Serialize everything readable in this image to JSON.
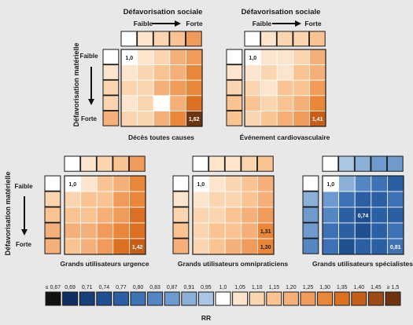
{
  "axis_labels": {
    "col_title": "Défavorisation sociale",
    "col_low": "Faible",
    "col_high": "Forte",
    "row_title": "Défavorisation matérielle",
    "row_low": "Faible",
    "row_high": "Forte"
  },
  "legend": {
    "title": "RR",
    "labels": [
      "≤ 0,67",
      "0,69",
      "0,71",
      "0,74",
      "0,77",
      "0,80",
      "0,83",
      "0,87",
      "0,91",
      "0,95",
      "1,0",
      "1,05",
      "1,10",
      "1,15",
      "1,20",
      "1,25",
      "1,30",
      "1,35",
      "1,40",
      "1,45",
      "≥ 1,5"
    ],
    "colors": [
      "#111111",
      "#0f2f63",
      "#173f7a",
      "#1f4f91",
      "#2b5fa3",
      "#3d72b5",
      "#5486c2",
      "#6e9acd",
      "#8bb0d8",
      "#a9c6e4",
      "#ffffff",
      "#fde4cc",
      "#fbd4b0",
      "#f9c392",
      "#f5b07a",
      "#f19b5b",
      "#e98638",
      "#dc7022",
      "#c65e18",
      "#9e4a14",
      "#6e3410"
    ]
  },
  "chart_data": [
    {
      "type": "heatmap",
      "title": "Décès toutes causes",
      "grid_levels": 5,
      "cells": [
        [
          1.0,
          1.05,
          1.1,
          1.2,
          1.25
        ],
        [
          1.05,
          1.1,
          1.15,
          1.2,
          1.3
        ],
        [
          1.1,
          1.1,
          1.2,
          1.25,
          1.3
        ],
        [
          1.05,
          1.1,
          1.0,
          1.2,
          1.35
        ],
        [
          1.1,
          1.1,
          1.2,
          1.3,
          1.62
        ]
      ],
      "col_margin": [
        1.0,
        1.05,
        1.1,
        1.15,
        1.25
      ],
      "row_margin": [
        1.0,
        1.05,
        1.1,
        1.1,
        1.2
      ],
      "labeled_values": [
        "1,0",
        "1,62"
      ]
    },
    {
      "type": "heatmap",
      "title": "Événement cardiovasculaire",
      "grid_levels": 5,
      "cells": [
        [
          1.0,
          1.05,
          1.05,
          1.1,
          1.2
        ],
        [
          1.05,
          1.1,
          1.05,
          1.15,
          1.2
        ],
        [
          1.1,
          1.05,
          1.15,
          1.15,
          1.25
        ],
        [
          1.15,
          1.1,
          1.15,
          1.2,
          1.3
        ],
        [
          1.1,
          1.15,
          1.2,
          1.25,
          1.41
        ]
      ],
      "col_margin": [
        1.0,
        1.05,
        1.1,
        1.1,
        1.15
      ],
      "row_margin": [
        1.0,
        1.05,
        1.1,
        1.15,
        1.15
      ],
      "labeled_values": [
        "1,0",
        "1,41"
      ]
    },
    {
      "type": "heatmap",
      "title": "Grands utilisateurs urgence",
      "grid_levels": 5,
      "cells": [
        [
          1.0,
          1.05,
          1.15,
          1.2,
          1.3
        ],
        [
          1.1,
          1.15,
          1.15,
          1.25,
          1.3
        ],
        [
          1.15,
          1.15,
          1.2,
          1.25,
          1.35
        ],
        [
          1.2,
          1.2,
          1.25,
          1.3,
          1.35
        ],
        [
          1.15,
          1.2,
          1.25,
          1.35,
          1.42
        ]
      ],
      "col_margin": [
        1.0,
        1.05,
        1.1,
        1.15,
        1.25
      ],
      "row_margin": [
        1.0,
        1.1,
        1.15,
        1.2,
        1.2
      ],
      "labeled_values": [
        "1,0",
        "1,42"
      ]
    },
    {
      "type": "heatmap",
      "title": "Grands utilisateurs omnipraticiens",
      "grid_levels": 5,
      "cells": [
        [
          1.0,
          1.05,
          1.1,
          1.15,
          1.2
        ],
        [
          1.05,
          1.1,
          1.1,
          1.15,
          1.2
        ],
        [
          1.1,
          1.1,
          1.15,
          1.2,
          1.25
        ],
        [
          1.1,
          1.15,
          1.15,
          1.2,
          1.31
        ],
        [
          1.1,
          1.15,
          1.2,
          1.25,
          1.3
        ]
      ],
      "col_margin": [
        1.0,
        1.05,
        1.05,
        1.1,
        1.15
      ],
      "row_margin": [
        1.0,
        1.05,
        1.1,
        1.15,
        1.2
      ],
      "labeled_values": [
        "1,0",
        "1,31",
        "1,30"
      ]
    },
    {
      "type": "heatmap",
      "title": "Grands utilisateurs spécialistes",
      "grid_levels": 5,
      "cells": [
        [
          1.0,
          0.91,
          0.83,
          0.8,
          0.77
        ],
        [
          0.87,
          0.8,
          0.77,
          0.77,
          0.8
        ],
        [
          0.83,
          0.77,
          0.74,
          0.77,
          0.77
        ],
        [
          0.8,
          0.77,
          0.74,
          0.77,
          0.8
        ],
        [
          0.8,
          0.74,
          0.77,
          0.77,
          0.81
        ]
      ],
      "col_margin": [
        1.0,
        0.95,
        0.91,
        0.87,
        0.87
      ],
      "row_margin": [
        1.0,
        0.91,
        0.87,
        0.87,
        0.83
      ],
      "labeled_values": [
        "1,0",
        "0,74",
        "0,81"
      ]
    }
  ]
}
